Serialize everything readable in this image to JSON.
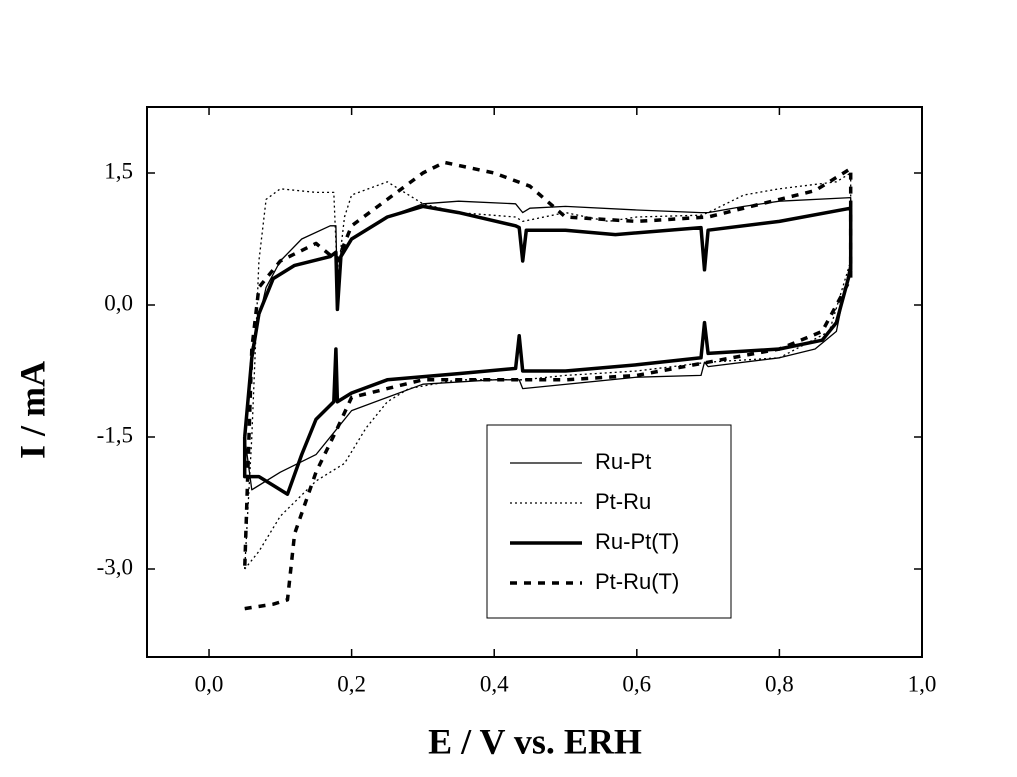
{
  "chart_data": {
    "type": "line",
    "xlabel": "E / V vs. ERH",
    "ylabel": "I / mA",
    "xlim": [
      -0.087,
      1.0
    ],
    "ylim": [
      -4.0,
      2.25
    ],
    "xticks": [
      {
        "value": 0,
        "label": "0,0"
      },
      {
        "value": 0.2,
        "label": "0,2"
      },
      {
        "value": 0.4,
        "label": "0,4"
      },
      {
        "value": 0.6,
        "label": "0,6"
      },
      {
        "value": 0.8,
        "label": "0,8"
      },
      {
        "value": 1.0,
        "label": "1,0"
      }
    ],
    "yticks": [
      {
        "value": 1.5,
        "label": "1,5"
      },
      {
        "value": 0,
        "label": "0,0"
      },
      {
        "value": -1.5,
        "label": "-1,5"
      },
      {
        "value": -3.0,
        "label": "-3,0"
      }
    ],
    "legend": "lower right",
    "series": [
      {
        "name": "Ru-Pt",
        "color": "#000000",
        "linestyle": "solid",
        "linewidth": "thin",
        "x": [
          0.05,
          0.06,
          0.08,
          0.1,
          0.13,
          0.17,
          0.178,
          0.18,
          0.185,
          0.2,
          0.25,
          0.3,
          0.35,
          0.43,
          0.44,
          0.45,
          0.5,
          0.6,
          0.69,
          0.7,
          0.75,
          0.8,
          0.9,
          0.9,
          0.88,
          0.85,
          0.8,
          0.7,
          0.695,
          0.69,
          0.6,
          0.44,
          0.435,
          0.4,
          0.3,
          0.25,
          0.2,
          0.18,
          0.15,
          0.1,
          0.06,
          0.05
        ],
        "values": [
          -1.5,
          -0.5,
          0.2,
          0.5,
          0.75,
          0.9,
          0.9,
          0.1,
          0.6,
          0.75,
          1.0,
          1.15,
          1.18,
          1.15,
          1.05,
          1.1,
          1.12,
          1.08,
          1.05,
          1.05,
          1.12,
          1.18,
          1.22,
          0.5,
          -0.3,
          -0.5,
          -0.6,
          -0.7,
          -0.65,
          -0.8,
          -0.82,
          -0.95,
          -0.85,
          -0.85,
          -0.9,
          -1.05,
          -1.2,
          -1.4,
          -1.7,
          -1.9,
          -2.1,
          -1.5
        ]
      },
      {
        "name": "Pt-Ru",
        "color": "#000000",
        "linestyle": "dotted",
        "linewidth": "thin",
        "x": [
          0.05,
          0.06,
          0.07,
          0.08,
          0.1,
          0.15,
          0.175,
          0.18,
          0.19,
          0.2,
          0.25,
          0.3,
          0.35,
          0.43,
          0.44,
          0.5,
          0.56,
          0.6,
          0.69,
          0.7,
          0.75,
          0.8,
          0.88,
          0.9,
          0.9,
          0.87,
          0.8,
          0.7,
          0.6,
          0.5,
          0.44,
          0.35,
          0.28,
          0.25,
          0.22,
          0.19,
          0.18,
          0.15,
          0.1,
          0.07,
          0.05
        ],
        "values": [
          -3.0,
          -1.5,
          0.5,
          1.2,
          1.32,
          1.28,
          1.28,
          0.3,
          1.0,
          1.25,
          1.4,
          1.15,
          1.05,
          1.0,
          0.95,
          1.05,
          0.95,
          1.0,
          1.02,
          1.05,
          1.25,
          1.32,
          1.4,
          1.5,
          0.5,
          -0.3,
          -0.6,
          -0.65,
          -0.75,
          -0.8,
          -0.85,
          -0.85,
          -0.95,
          -1.1,
          -1.4,
          -1.8,
          -1.85,
          -2.0,
          -2.4,
          -2.8,
          -3.0
        ]
      },
      {
        "name": "Ru-Pt(T)",
        "color": "#000000",
        "linestyle": "solid",
        "linewidth": "thick",
        "x": [
          0.05,
          0.06,
          0.07,
          0.09,
          0.12,
          0.17,
          0.178,
          0.18,
          0.185,
          0.2,
          0.25,
          0.3,
          0.35,
          0.43,
          0.435,
          0.44,
          0.445,
          0.5,
          0.57,
          0.69,
          0.695,
          0.7,
          0.8,
          0.9,
          0.9,
          0.88,
          0.86,
          0.8,
          0.7,
          0.695,
          0.69,
          0.6,
          0.5,
          0.44,
          0.435,
          0.43,
          0.35,
          0.25,
          0.2,
          0.18,
          0.178,
          0.175,
          0.15,
          0.13,
          0.11,
          0.09,
          0.07,
          0.05,
          0.05
        ],
        "values": [
          -1.5,
          -0.6,
          -0.1,
          0.3,
          0.45,
          0.55,
          0.6,
          -0.05,
          0.55,
          0.75,
          1.0,
          1.12,
          1.05,
          0.9,
          0.88,
          0.5,
          0.85,
          0.85,
          0.8,
          0.88,
          0.4,
          0.85,
          0.95,
          1.1,
          0.4,
          -0.2,
          -0.4,
          -0.5,
          -0.55,
          -0.2,
          -0.6,
          -0.68,
          -0.75,
          -0.75,
          -0.35,
          -0.72,
          -0.78,
          -0.85,
          -1.0,
          -1.1,
          -0.5,
          -1.1,
          -1.3,
          -1.7,
          -2.15,
          -2.05,
          -1.95,
          -1.95,
          -1.5
        ]
      },
      {
        "name": "Pt-Ru(T)",
        "color": "#000000",
        "linestyle": "dashed",
        "linewidth": "thick",
        "x": [
          0.05,
          0.09,
          0.11,
          0.12,
          0.15,
          0.18,
          0.2,
          0.25,
          0.3,
          0.4,
          0.5,
          0.6,
          0.7,
          0.8,
          0.86,
          0.9,
          0.9,
          0.85,
          0.8,
          0.7,
          0.6,
          0.5,
          0.45,
          0.4,
          0.33,
          0.3,
          0.25,
          0.2,
          0.18,
          0.15,
          0.1,
          0.07,
          0.06,
          0.05
        ],
        "values": [
          -3.45,
          -3.4,
          -3.35,
          -2.6,
          -1.9,
          -1.4,
          -1.05,
          -0.95,
          -0.85,
          -0.85,
          -0.85,
          -0.8,
          -0.65,
          -0.5,
          -0.3,
          0.3,
          1.55,
          1.3,
          1.2,
          1.0,
          0.95,
          1.0,
          1.35,
          1.5,
          1.62,
          1.5,
          1.2,
          0.9,
          0.5,
          0.7,
          0.5,
          0.2,
          -0.5,
          -3.0
        ]
      }
    ]
  }
}
